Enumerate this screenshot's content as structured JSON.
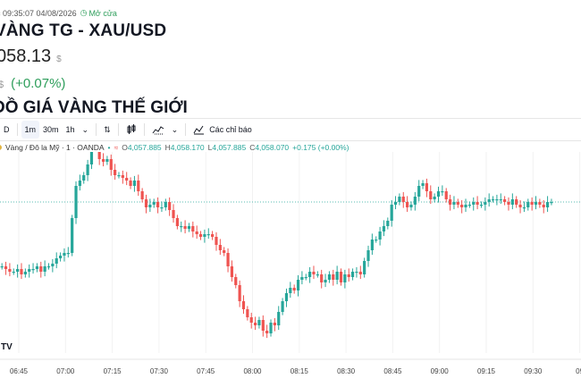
{
  "header": {
    "updated_text": "c 09:35:07 04/08/2026",
    "market_status": "Mở cửa",
    "title": "VÀNG TG - XAU/USD",
    "price": "058.13",
    "price_currency": "$",
    "change_currency": "$",
    "change_percent": "(+0.07%)",
    "chart_section_title": "ĐỒ GIÁ VÀNG THẾ GIỚI"
  },
  "toolbar": {
    "first": "D",
    "timeframes": [
      "1m",
      "30m",
      "1h"
    ],
    "active_timeframe": "1m",
    "indicators_label": "Các chỉ báo"
  },
  "legend": {
    "symbol": "Vàng / Đô la Mỹ · 1 · OANDA",
    "open_label": "O",
    "open": "4,057.885",
    "high_label": "H",
    "high": "4,058.170",
    "low_label": "L",
    "low": "4,057.885",
    "close_label": "C",
    "close": "4,058.070",
    "change": "+0.175 (+0.00%)"
  },
  "colors": {
    "up": "#26a69a",
    "down": "#ef5350",
    "positive_text": "#2e9e5b"
  },
  "chart_data": {
    "type": "candlestick",
    "x_tick_labels": [
      "06:45",
      "07:00",
      "07:15",
      "07:30",
      "07:45",
      "08:00",
      "08:15",
      "08:30",
      "08:45",
      "09:00",
      "09:15",
      "09:30",
      "09"
    ],
    "last_price_line": true,
    "closes": [
      40,
      39,
      38,
      38,
      39,
      37,
      38,
      39,
      39,
      40,
      38,
      40,
      40,
      41,
      43,
      44,
      45,
      45,
      58,
      70,
      72,
      74,
      78,
      90,
      85,
      80,
      79,
      80,
      76,
      74,
      74,
      73,
      72,
      70,
      72,
      68,
      65,
      62,
      63,
      64,
      62,
      62,
      64,
      61,
      58,
      55,
      55,
      54,
      55,
      53,
      52,
      51,
      52,
      52,
      51,
      48,
      46,
      45,
      40,
      36,
      33,
      27,
      24,
      21,
      19,
      18,
      20,
      16,
      15,
      19,
      18,
      23,
      27,
      30,
      32,
      31,
      35,
      36,
      36,
      38,
      37,
      37,
      34,
      35,
      37,
      35,
      38,
      34,
      37,
      36,
      38,
      38,
      37,
      42,
      46,
      50,
      50,
      53,
      55,
      57,
      63,
      64,
      66,
      64,
      62,
      63,
      66,
      70,
      71,
      68,
      65,
      66,
      68,
      68,
      65,
      63,
      64,
      63,
      62,
      63,
      63,
      64,
      63,
      63,
      64,
      65,
      65,
      65,
      65,
      64,
      63,
      65,
      63,
      62,
      62,
      64,
      63,
      64,
      63,
      62,
      64,
      64
    ]
  }
}
